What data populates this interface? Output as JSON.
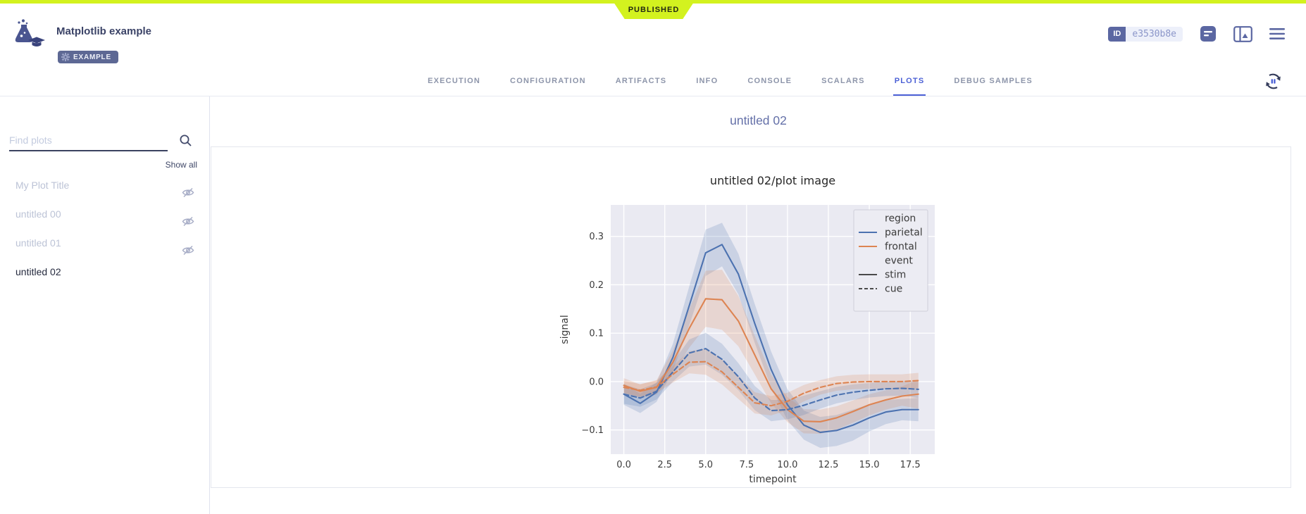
{
  "status": {
    "published_label": "PUBLISHED"
  },
  "header": {
    "title": "Matplotlib example",
    "example_badge": "EXAMPLE",
    "id_label": "ID",
    "id_value": "e3530b8e"
  },
  "tabs": {
    "items": [
      "EXECUTION",
      "CONFIGURATION",
      "ARTIFACTS",
      "INFO",
      "CONSOLE",
      "SCALARS",
      "PLOTS",
      "DEBUG SAMPLES"
    ],
    "active": "PLOTS"
  },
  "sidebar": {
    "search_placeholder": "Find plots",
    "show_all_label": "Show all",
    "items": [
      {
        "label": "My Plot Title",
        "hidden": true,
        "active": false
      },
      {
        "label": "untitled 00",
        "hidden": true,
        "active": false
      },
      {
        "label": "untitled 01",
        "hidden": true,
        "active": false
      },
      {
        "label": "untitled 02",
        "hidden": false,
        "active": true
      }
    ]
  },
  "main": {
    "section_title": "untitled 02"
  },
  "chart_data": {
    "type": "line",
    "title": "untitled 02/plot image",
    "xlabel": "timepoint",
    "ylabel": "signal",
    "x": [
      0,
      1,
      2,
      3,
      4,
      5,
      6,
      7,
      8,
      9,
      10,
      11,
      12,
      13,
      14,
      15,
      16,
      17,
      18
    ],
    "series": [
      {
        "name": "parietal / stim",
        "region": "parietal",
        "event": "stim",
        "color": "#4c72b0",
        "dash": "solid",
        "values": [
          -0.026,
          -0.045,
          -0.022,
          0.05,
          0.157,
          0.266,
          0.283,
          0.222,
          0.12,
          0.025,
          -0.048,
          -0.09,
          -0.105,
          -0.101,
          -0.09,
          -0.075,
          -0.063,
          -0.058,
          -0.058
        ],
        "ci": [
          0.022,
          0.02,
          0.02,
          0.028,
          0.04,
          0.048,
          0.045,
          0.042,
          0.04,
          0.037,
          0.032,
          0.03,
          0.032,
          0.032,
          0.032,
          0.028,
          0.025,
          0.022,
          0.024
        ]
      },
      {
        "name": "frontal / stim",
        "region": "frontal",
        "event": "stim",
        "color": "#dd8452",
        "dash": "solid",
        "values": [
          -0.008,
          -0.02,
          -0.012,
          0.04,
          0.11,
          0.171,
          0.169,
          0.125,
          0.055,
          -0.015,
          -0.058,
          -0.082,
          -0.083,
          -0.075,
          -0.062,
          -0.048,
          -0.038,
          -0.03,
          -0.026
        ],
        "ci": [
          0.015,
          0.014,
          0.015,
          0.024,
          0.04,
          0.058,
          0.062,
          0.052,
          0.04,
          0.03,
          0.026,
          0.025,
          0.025,
          0.024,
          0.023,
          0.022,
          0.02,
          0.02,
          0.03
        ]
      },
      {
        "name": "parietal / cue",
        "region": "parietal",
        "event": "cue",
        "color": "#4c72b0",
        "dash": "dashed",
        "values": [
          -0.026,
          -0.034,
          -0.02,
          0.02,
          0.059,
          0.068,
          0.046,
          0.01,
          -0.034,
          -0.06,
          -0.058,
          -0.049,
          -0.038,
          -0.028,
          -0.022,
          -0.018,
          -0.015,
          -0.014,
          -0.016
        ],
        "ci": [
          0.02,
          0.018,
          0.017,
          0.02,
          0.028,
          0.033,
          0.032,
          0.028,
          0.025,
          0.022,
          0.02,
          0.02,
          0.018,
          0.017,
          0.016,
          0.015,
          0.015,
          0.015,
          0.018
        ]
      },
      {
        "name": "frontal / cue",
        "region": "frontal",
        "event": "cue",
        "color": "#dd8452",
        "dash": "dashed",
        "values": [
          -0.012,
          -0.018,
          -0.011,
          0.015,
          0.04,
          0.041,
          0.02,
          -0.012,
          -0.044,
          -0.05,
          -0.041,
          -0.024,
          -0.012,
          -0.004,
          -0.001,
          0.0,
          0.0,
          0.0,
          0.002
        ],
        "ci": [
          0.013,
          0.013,
          0.013,
          0.017,
          0.023,
          0.027,
          0.026,
          0.024,
          0.022,
          0.02,
          0.018,
          0.017,
          0.015,
          0.015,
          0.015,
          0.015,
          0.015,
          0.015,
          0.016
        ]
      }
    ],
    "xticks": [
      0.0,
      2.5,
      5.0,
      7.5,
      10.0,
      12.5,
      15.0,
      17.5
    ],
    "yticks": [
      -0.1,
      0.0,
      0.1,
      0.2,
      0.3
    ],
    "xlim": [
      -0.8,
      19.0
    ],
    "ylim": [
      -0.15,
      0.365
    ],
    "grid": true,
    "plot_bg": "#eaeaf2",
    "band_alpha": 0.2,
    "legend": {
      "position": "upper right",
      "entries": [
        {
          "kind": "title",
          "label": "region"
        },
        {
          "kind": "line",
          "label": "parietal",
          "color": "#4c72b0",
          "dash": "solid"
        },
        {
          "kind": "line",
          "label": "frontal",
          "color": "#dd8452",
          "dash": "solid"
        },
        {
          "kind": "title",
          "label": "event"
        },
        {
          "kind": "line",
          "label": "stim",
          "color": "#4a4a4a",
          "dash": "solid"
        },
        {
          "kind": "line",
          "label": "cue",
          "color": "#4a4a4a",
          "dash": "dashed"
        }
      ]
    }
  },
  "colors": {
    "brand_lime": "#d3f21f",
    "accent_blue": "#4c61d6",
    "slate_icon": "#5b67a2",
    "dark_navy": "#3b4367",
    "series_blue": "#4c72b0",
    "series_orange": "#dd8452",
    "plot_background": "#eaeaf2"
  }
}
